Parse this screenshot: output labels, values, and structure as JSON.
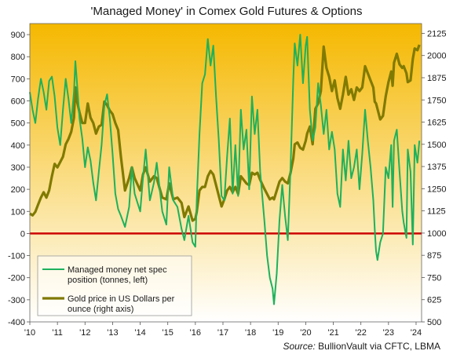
{
  "title": "'Managed Money' in Comex Gold Futures & Options",
  "source": {
    "label": "Source:",
    "text": "BullionVault via CFTC, LBMA"
  },
  "chart_data": {
    "type": "line",
    "x_ticks": [
      "'10",
      "'11",
      "'12",
      "'13",
      "'14",
      "'15",
      "'16",
      "'17",
      "'18",
      "'19",
      "'20",
      "'21",
      "'22",
      "'23",
      "'24"
    ],
    "xlim": [
      2010,
      2024.2
    ],
    "left_axis": {
      "ticks": [
        900,
        800,
        700,
        600,
        500,
        400,
        300,
        200,
        100,
        0,
        -100,
        -200,
        -300,
        -400
      ],
      "ylim": [
        -400,
        950
      ]
    },
    "right_axis": {
      "ticks": [
        2125,
        2000,
        1875,
        1750,
        1625,
        1500,
        1375,
        1250,
        1125,
        1000,
        875,
        750,
        625,
        500
      ],
      "ylim": [
        500,
        2180
      ]
    },
    "zero_line_color": "#cc0000",
    "background_gradient": [
      "#f5b800",
      "#ffffff"
    ],
    "grid": false,
    "legend_position": "bottom-left",
    "series": [
      {
        "name": "Managed money net spec position (tonnes, left)",
        "legend_lines": [
          "Managed money net spec",
          "position (tonnes, left)"
        ],
        "axis": "left",
        "color": "#1db15c",
        "points": [
          [
            2010.0,
            640
          ],
          [
            2010.1,
            560
          ],
          [
            2010.2,
            500
          ],
          [
            2010.3,
            610
          ],
          [
            2010.4,
            700
          ],
          [
            2010.5,
            640
          ],
          [
            2010.6,
            560
          ],
          [
            2010.7,
            690
          ],
          [
            2010.8,
            710
          ],
          [
            2010.9,
            620
          ],
          [
            2011.0,
            480
          ],
          [
            2011.1,
            400
          ],
          [
            2011.2,
            560
          ],
          [
            2011.3,
            700
          ],
          [
            2011.4,
            610
          ],
          [
            2011.5,
            500
          ],
          [
            2011.6,
            640
          ],
          [
            2011.65,
            780
          ],
          [
            2011.7,
            700
          ],
          [
            2011.8,
            520
          ],
          [
            2011.9,
            430
          ],
          [
            2012.0,
            300
          ],
          [
            2012.1,
            390
          ],
          [
            2012.2,
            330
          ],
          [
            2012.3,
            230
          ],
          [
            2012.4,
            150
          ],
          [
            2012.5,
            280
          ],
          [
            2012.6,
            400
          ],
          [
            2012.7,
            580
          ],
          [
            2012.8,
            630
          ],
          [
            2012.9,
            520
          ],
          [
            2013.0,
            360
          ],
          [
            2013.1,
            180
          ],
          [
            2013.2,
            110
          ],
          [
            2013.3,
            80
          ],
          [
            2013.45,
            30
          ],
          [
            2013.6,
            120
          ],
          [
            2013.7,
            300
          ],
          [
            2013.8,
            180
          ],
          [
            2014.0,
            100
          ],
          [
            2014.1,
            250
          ],
          [
            2014.2,
            380
          ],
          [
            2014.35,
            150
          ],
          [
            2014.5,
            230
          ],
          [
            2014.6,
            320
          ],
          [
            2014.8,
            100
          ],
          [
            2014.95,
            40
          ],
          [
            2015.05,
            300
          ],
          [
            2015.2,
            150
          ],
          [
            2015.35,
            120
          ],
          [
            2015.5,
            20
          ],
          [
            2015.6,
            -30
          ],
          [
            2015.75,
            80
          ],
          [
            2015.9,
            -40
          ],
          [
            2016.0,
            -60
          ],
          [
            2016.05,
            150
          ],
          [
            2016.15,
            450
          ],
          [
            2016.25,
            680
          ],
          [
            2016.35,
            720
          ],
          [
            2016.45,
            880
          ],
          [
            2016.55,
            760
          ],
          [
            2016.65,
            850
          ],
          [
            2016.75,
            620
          ],
          [
            2016.85,
            420
          ],
          [
            2016.95,
            170
          ],
          [
            2017.05,
            150
          ],
          [
            2017.15,
            350
          ],
          [
            2017.25,
            520
          ],
          [
            2017.35,
            180
          ],
          [
            2017.45,
            400
          ],
          [
            2017.55,
            170
          ],
          [
            2017.65,
            560
          ],
          [
            2017.75,
            380
          ],
          [
            2017.85,
            470
          ],
          [
            2017.95,
            200
          ],
          [
            2018.05,
            620
          ],
          [
            2018.15,
            450
          ],
          [
            2018.25,
            560
          ],
          [
            2018.35,
            280
          ],
          [
            2018.5,
            60
          ],
          [
            2018.6,
            -100
          ],
          [
            2018.7,
            -200
          ],
          [
            2018.8,
            -250
          ],
          [
            2018.85,
            -320
          ],
          [
            2018.95,
            -180
          ],
          [
            2019.05,
            60
          ],
          [
            2019.15,
            220
          ],
          [
            2019.25,
            80
          ],
          [
            2019.35,
            -30
          ],
          [
            2019.45,
            300
          ],
          [
            2019.55,
            700
          ],
          [
            2019.6,
            860
          ],
          [
            2019.7,
            760
          ],
          [
            2019.8,
            900
          ],
          [
            2019.9,
            680
          ],
          [
            2020.0,
            850
          ],
          [
            2020.05,
            890
          ],
          [
            2020.15,
            560
          ],
          [
            2020.25,
            420
          ],
          [
            2020.35,
            480
          ],
          [
            2020.45,
            680
          ],
          [
            2020.55,
            580
          ],
          [
            2020.65,
            450
          ],
          [
            2020.75,
            560
          ],
          [
            2020.85,
            380
          ],
          [
            2020.95,
            460
          ],
          [
            2021.05,
            380
          ],
          [
            2021.15,
            180
          ],
          [
            2021.25,
            120
          ],
          [
            2021.35,
            380
          ],
          [
            2021.45,
            240
          ],
          [
            2021.55,
            420
          ],
          [
            2021.65,
            250
          ],
          [
            2021.75,
            300
          ],
          [
            2021.85,
            380
          ],
          [
            2021.95,
            200
          ],
          [
            2022.05,
            360
          ],
          [
            2022.15,
            560
          ],
          [
            2022.25,
            420
          ],
          [
            2022.35,
            300
          ],
          [
            2022.45,
            150
          ],
          [
            2022.5,
            20
          ],
          [
            2022.55,
            -80
          ],
          [
            2022.6,
            -120
          ],
          [
            2022.7,
            -40
          ],
          [
            2022.8,
            0
          ],
          [
            2022.9,
            300
          ],
          [
            2023.0,
            250
          ],
          [
            2023.1,
            400
          ],
          [
            2023.15,
            120
          ],
          [
            2023.2,
            420
          ],
          [
            2023.3,
            470
          ],
          [
            2023.4,
            280
          ],
          [
            2023.5,
            100
          ],
          [
            2023.55,
            50
          ],
          [
            2023.65,
            -20
          ],
          [
            2023.7,
            380
          ],
          [
            2023.8,
            280
          ],
          [
            2023.88,
            -50
          ],
          [
            2023.95,
            400
          ],
          [
            2024.05,
            320
          ],
          [
            2024.12,
            420
          ]
        ]
      },
      {
        "name": "Gold price in US Dollars per ounce (right axis)",
        "legend_lines": [
          "Gold price in US Dollars per",
          "ounce (right axis)"
        ],
        "axis": "right",
        "color": "#807a00",
        "points": [
          [
            2010.0,
            1110
          ],
          [
            2010.1,
            1100
          ],
          [
            2010.2,
            1120
          ],
          [
            2010.3,
            1160
          ],
          [
            2010.4,
            1200
          ],
          [
            2010.5,
            1230
          ],
          [
            2010.6,
            1200
          ],
          [
            2010.7,
            1240
          ],
          [
            2010.8,
            1320
          ],
          [
            2010.9,
            1390
          ],
          [
            2011.0,
            1370
          ],
          [
            2011.1,
            1400
          ],
          [
            2011.2,
            1430
          ],
          [
            2011.3,
            1500
          ],
          [
            2011.4,
            1530
          ],
          [
            2011.5,
            1570
          ],
          [
            2011.6,
            1650
          ],
          [
            2011.65,
            1820
          ],
          [
            2011.7,
            1750
          ],
          [
            2011.8,
            1680
          ],
          [
            2011.9,
            1620
          ],
          [
            2012.0,
            1620
          ],
          [
            2012.1,
            1730
          ],
          [
            2012.2,
            1650
          ],
          [
            2012.3,
            1620
          ],
          [
            2012.4,
            1560
          ],
          [
            2012.5,
            1600
          ],
          [
            2012.6,
            1610
          ],
          [
            2012.7,
            1740
          ],
          [
            2012.8,
            1720
          ],
          [
            2012.9,
            1690
          ],
          [
            2013.0,
            1670
          ],
          [
            2013.1,
            1620
          ],
          [
            2013.2,
            1580
          ],
          [
            2013.3,
            1430
          ],
          [
            2013.45,
            1240
          ],
          [
            2013.6,
            1310
          ],
          [
            2013.7,
            1370
          ],
          [
            2013.8,
            1310
          ],
          [
            2014.0,
            1240
          ],
          [
            2014.1,
            1330
          ],
          [
            2014.2,
            1370
          ],
          [
            2014.35,
            1290
          ],
          [
            2014.5,
            1320
          ],
          [
            2014.6,
            1310
          ],
          [
            2014.8,
            1200
          ],
          [
            2014.95,
            1190
          ],
          [
            2015.05,
            1280
          ],
          [
            2015.2,
            1190
          ],
          [
            2015.35,
            1200
          ],
          [
            2015.5,
            1170
          ],
          [
            2015.6,
            1090
          ],
          [
            2015.75,
            1150
          ],
          [
            2015.9,
            1070
          ],
          [
            2016.0,
            1080
          ],
          [
            2016.05,
            1120
          ],
          [
            2016.15,
            1240
          ],
          [
            2016.25,
            1260
          ],
          [
            2016.35,
            1260
          ],
          [
            2016.45,
            1320
          ],
          [
            2016.55,
            1350
          ],
          [
            2016.65,
            1330
          ],
          [
            2016.75,
            1270
          ],
          [
            2016.85,
            1210
          ],
          [
            2016.95,
            1150
          ],
          [
            2017.05,
            1190
          ],
          [
            2017.15,
            1240
          ],
          [
            2017.25,
            1260
          ],
          [
            2017.35,
            1230
          ],
          [
            2017.45,
            1260
          ],
          [
            2017.55,
            1220
          ],
          [
            2017.65,
            1320
          ],
          [
            2017.75,
            1300
          ],
          [
            2017.85,
            1280
          ],
          [
            2017.95,
            1270
          ],
          [
            2018.05,
            1340
          ],
          [
            2018.15,
            1330
          ],
          [
            2018.25,
            1340
          ],
          [
            2018.35,
            1300
          ],
          [
            2018.5,
            1250
          ],
          [
            2018.6,
            1220
          ],
          [
            2018.7,
            1190
          ],
          [
            2018.8,
            1200
          ],
          [
            2018.85,
            1190
          ],
          [
            2018.95,
            1240
          ],
          [
            2019.05,
            1290
          ],
          [
            2019.15,
            1310
          ],
          [
            2019.25,
            1290
          ],
          [
            2019.35,
            1280
          ],
          [
            2019.45,
            1340
          ],
          [
            2019.55,
            1420
          ],
          [
            2019.6,
            1500
          ],
          [
            2019.7,
            1510
          ],
          [
            2019.8,
            1480
          ],
          [
            2019.9,
            1470
          ],
          [
            2020.0,
            1520
          ],
          [
            2020.05,
            1560
          ],
          [
            2020.15,
            1600
          ],
          [
            2020.25,
            1500
          ],
          [
            2020.35,
            1700
          ],
          [
            2020.45,
            1730
          ],
          [
            2020.55,
            1800
          ],
          [
            2020.65,
            2050
          ],
          [
            2020.75,
            1930
          ],
          [
            2020.85,
            1880
          ],
          [
            2020.95,
            1800
          ],
          [
            2021.05,
            1860
          ],
          [
            2021.15,
            1760
          ],
          [
            2021.25,
            1700
          ],
          [
            2021.35,
            1780
          ],
          [
            2021.45,
            1880
          ],
          [
            2021.55,
            1780
          ],
          [
            2021.65,
            1810
          ],
          [
            2021.75,
            1750
          ],
          [
            2021.85,
            1820
          ],
          [
            2021.95,
            1800
          ],
          [
            2022.05,
            1820
          ],
          [
            2022.15,
            1940
          ],
          [
            2022.25,
            1900
          ],
          [
            2022.35,
            1860
          ],
          [
            2022.45,
            1820
          ],
          [
            2022.5,
            1740
          ],
          [
            2022.55,
            1730
          ],
          [
            2022.6,
            1700
          ],
          [
            2022.7,
            1640
          ],
          [
            2022.8,
            1660
          ],
          [
            2022.9,
            1770
          ],
          [
            2023.0,
            1850
          ],
          [
            2023.1,
            1910
          ],
          [
            2023.15,
            1830
          ],
          [
            2023.2,
            1960
          ],
          [
            2023.3,
            2010
          ],
          [
            2023.4,
            1950
          ],
          [
            2023.5,
            1930
          ],
          [
            2023.55,
            1940
          ],
          [
            2023.65,
            1900
          ],
          [
            2023.7,
            1850
          ],
          [
            2023.8,
            1860
          ],
          [
            2023.88,
            1980
          ],
          [
            2023.95,
            2040
          ],
          [
            2024.05,
            2030
          ],
          [
            2024.12,
            2060
          ]
        ]
      }
    ]
  }
}
